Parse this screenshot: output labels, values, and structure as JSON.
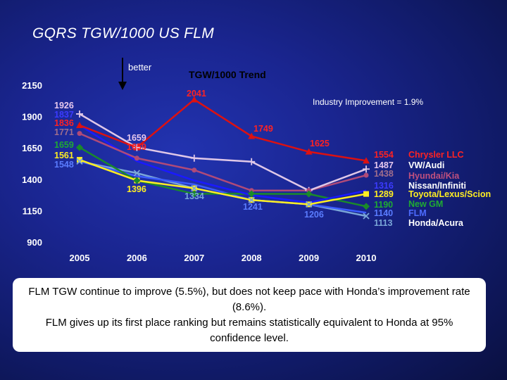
{
  "slide": {
    "title": "GQRS TGW/1000 US FLM",
    "better_label": "better"
  },
  "note": {
    "line1": "FLM TGW continue to improve (5.5%), but does not keep pace with Honda’s improvement rate (8.6%).",
    "line2": "FLM gives up its first place ranking but remains statistically equivalent to Honda at 95% confidence level."
  },
  "chart_data": {
    "type": "line",
    "title": "TGW/1000 Trend",
    "annotation": "Industry Improvement = 1.9%",
    "xlabel": "",
    "ylabel": "",
    "x": [
      "2005",
      "2006",
      "2007",
      "2008",
      "2009",
      "2010"
    ],
    "ylim": [
      900,
      2150
    ],
    "yticks": [
      900,
      1150,
      1400,
      1650,
      1900,
      2150
    ],
    "grid": false,
    "legend": "right, labels beside final values",
    "series": [
      {
        "name": "Chrysler LLC",
        "color": "#dd1111",
        "marker": "triangle",
        "values": [
          1836,
          1659,
          2041,
          1749,
          1625,
          1554
        ],
        "labels": [
          "1836",
          "1659",
          "2041",
          "1749",
          "1625",
          "1554"
        ]
      },
      {
        "name": "VW/Audi",
        "color": "#e0c8e8",
        "marker": "plus",
        "values": [
          1926,
          1659,
          1574,
          1546,
          1316,
          1487
        ],
        "labels": [
          "1926",
          "1659",
          "",
          "",
          "",
          "1487"
        ]
      },
      {
        "name": "Hyundai/Kia",
        "color": "#b04a78",
        "marker": "circle",
        "values": [
          1771,
          1574,
          1479,
          1316,
          1316,
          1438
        ],
        "labels": [
          "1771",
          "",
          "",
          "",
          "",
          "1438"
        ]
      },
      {
        "name": "Nissan/Infiniti",
        "color": "#1a1aff",
        "marker": "none",
        "values": [
          1837,
          1550,
          1396,
          1280,
          1220,
          1316
        ],
        "labels": [
          "1837",
          "",
          "",
          "",
          "",
          "1316"
        ]
      },
      {
        "name": "Toyota/Lexus/Scion",
        "color": "#ffee22",
        "marker": "square",
        "values": [
          1561,
          1396,
          1334,
          1241,
          1206,
          1289
        ],
        "labels": [
          "1561",
          "1396",
          "",
          "",
          "",
          "1289"
        ]
      },
      {
        "name": "New GM",
        "color": "#1a8a2a",
        "marker": "diamond",
        "values": [
          1659,
          1396,
          1290,
          1290,
          1289,
          1190
        ],
        "labels": [
          "1659",
          "",
          "",
          "",
          "",
          "1190"
        ]
      },
      {
        "name": "FLM",
        "color": "#3b5bff",
        "marker": "none",
        "values": [
          1548,
          1431,
          1365,
          1241,
          1206,
          1140
        ],
        "labels": [
          "1548",
          "",
          "",
          "1241",
          "1206",
          "1140"
        ]
      },
      {
        "name": "Honda/Acura",
        "color": "#7aa6d8",
        "marker": "x",
        "values": [
          1548,
          1455,
          1334,
          1241,
          1206,
          1113
        ],
        "labels": [
          "",
          "",
          "1334",
          "",
          "",
          "1113"
        ]
      }
    ],
    "legend_label_colors": {
      "Chrysler LLC": "#ff2222",
      "VW/Audi": "#ffffff",
      "Hyundai/Kia": "#c0507e",
      "Nissan/Infiniti": "#ffffff",
      "Toyota/Lexus/Scion": "#ffee22",
      "New GM": "#1faa33",
      "FLM": "#4d6bff",
      "Honda/Acura": "#ffffff"
    },
    "tick_label_color": "#ffffff"
  }
}
